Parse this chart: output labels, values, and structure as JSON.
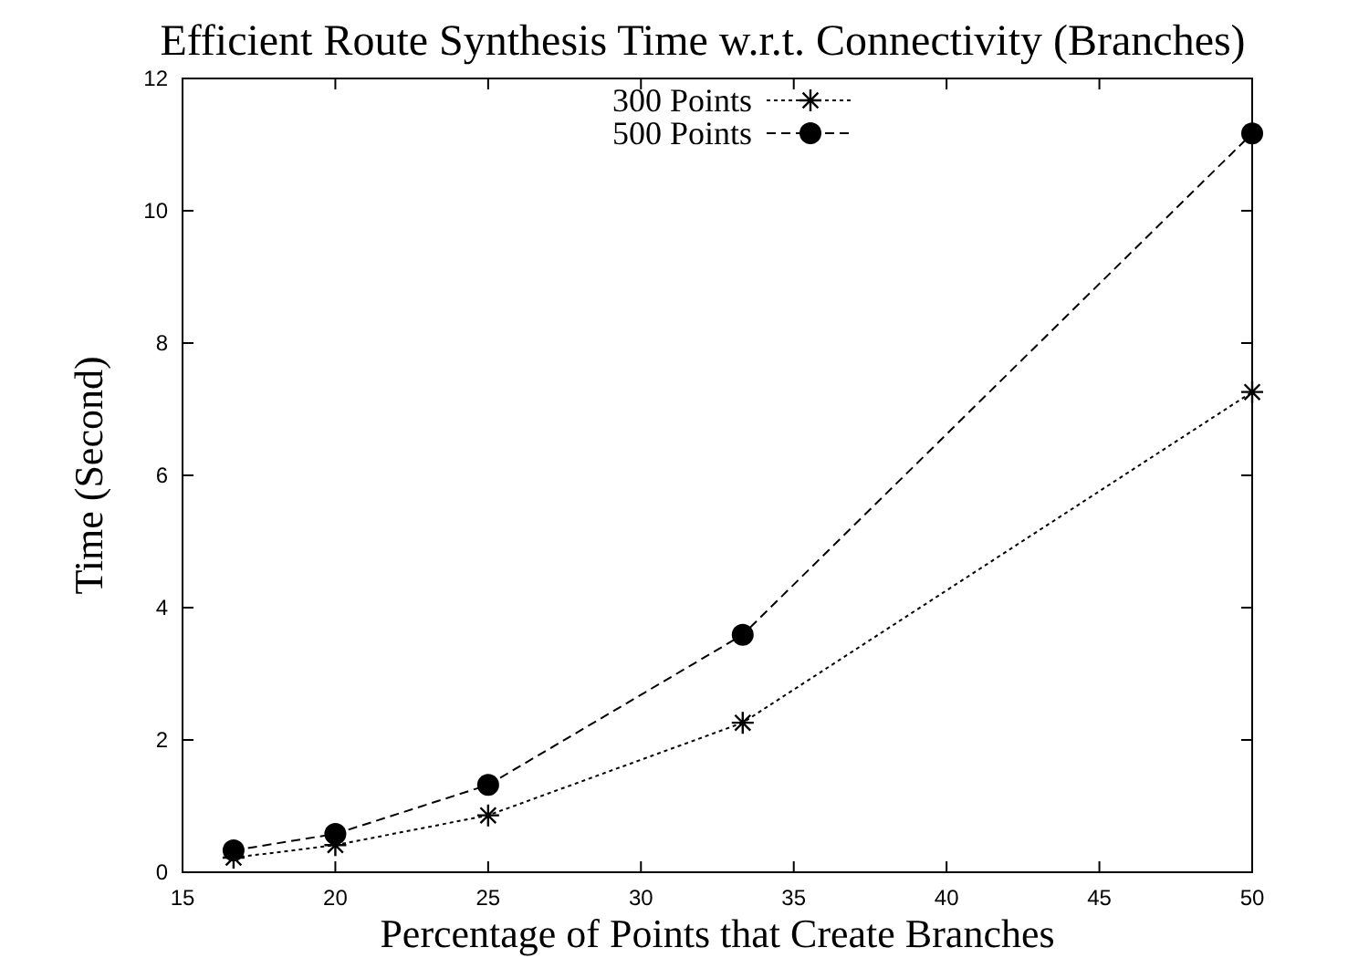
{
  "chart_data": {
    "type": "line",
    "title": "Efficient Route Synthesis Time w.r.t. Connectivity (Branches)",
    "xlabel": "Percentage of Points that Create Branches",
    "ylabel": "Time (Second)",
    "x": [
      16.67,
      20,
      25,
      33.33,
      50
    ],
    "series": [
      {
        "name": "300 Points",
        "color": "#000000",
        "marker": "cross",
        "line_style": "dotted",
        "values": [
          0.22,
          0.41,
          0.86,
          2.26,
          7.26
        ]
      },
      {
        "name": "500 Points",
        "color": "#000000",
        "marker": "circle",
        "line_style": "dashed",
        "values": [
          0.33,
          0.58,
          1.32,
          3.59,
          11.17
        ]
      }
    ],
    "xlim": [
      15,
      50
    ],
    "xticks": [
      15,
      20,
      25,
      30,
      35,
      40,
      45,
      50
    ],
    "ylim": [
      0,
      12
    ],
    "yticks": [
      0,
      2,
      4,
      6,
      8,
      10,
      12
    ],
    "grid": false,
    "legend": "top"
  }
}
